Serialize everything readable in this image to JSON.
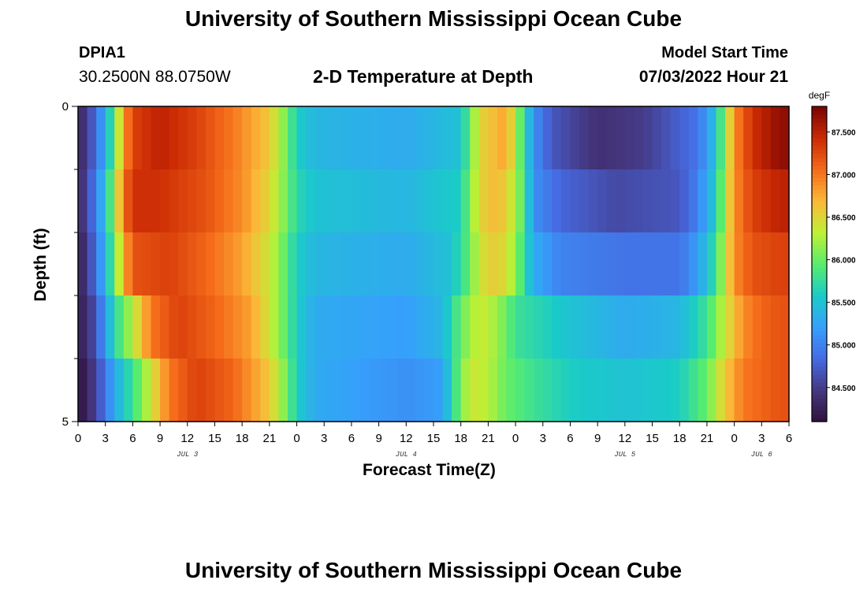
{
  "header": {
    "title": "University of Southern Mississippi Ocean Cube",
    "station": "DPIA1",
    "coords": "30.2500N  88.0750W",
    "plot_title": "2-D Temperature at Depth",
    "start_label": "Model Start Time",
    "start_value": "07/03/2022 Hour 21"
  },
  "footer": {
    "title": "University of Southern Mississippi Ocean Cube"
  },
  "chart_data": {
    "type": "heatmap",
    "title": "2-D Temperature at Depth",
    "xlabel": "Forecast Time(Z)",
    "ylabel": "Depth (ft)",
    "x_start_hour": 0,
    "x_end_hour": 78,
    "x_tick_labels": [
      "0",
      "3",
      "6",
      "9",
      "12",
      "15",
      "18",
      "21",
      "0",
      "3",
      "6",
      "9",
      "12",
      "15",
      "18",
      "21",
      "0",
      "3",
      "6",
      "9",
      "12",
      "15",
      "18",
      "21",
      "0",
      "3",
      "6"
    ],
    "day_labels": [
      {
        "label": "JUL 3",
        "hour": 12
      },
      {
        "label": "JUL 4",
        "hour": 36
      },
      {
        "label": "JUL 5",
        "hour": 60
      },
      {
        "label": "JUL 6",
        "hour": 75
      }
    ],
    "y_range": [
      0,
      5
    ],
    "y_tick_labels": [
      "0",
      "5"
    ],
    "depth_layers": [
      0,
      1,
      2,
      3,
      4
    ],
    "colorbar": {
      "unit": "degF",
      "min": 84.1,
      "max": 87.8,
      "ticks": [
        "84.500",
        "85.000",
        "85.500",
        "86.000",
        "86.500",
        "87.000",
        "87.500"
      ],
      "tick_values": [
        84.5,
        85.0,
        85.5,
        86.0,
        86.5,
        87.0,
        87.5
      ]
    },
    "layer_profiles": [
      {
        "depth_ft": 0,
        "points": [
          [
            0,
            84.3
          ],
          [
            1,
            84.5
          ],
          [
            2,
            84.9
          ],
          [
            3,
            85.3
          ],
          [
            4,
            86.0
          ],
          [
            5,
            86.8
          ],
          [
            6,
            87.3
          ],
          [
            9,
            87.5
          ],
          [
            13,
            87.3
          ],
          [
            17,
            87.0
          ],
          [
            21,
            86.6
          ],
          [
            23,
            86.0
          ],
          [
            24,
            85.6
          ],
          [
            26,
            85.4
          ],
          [
            36,
            85.3
          ],
          [
            42,
            85.5
          ],
          [
            43,
            86.0
          ],
          [
            44,
            86.5
          ],
          [
            47,
            86.8
          ],
          [
            48,
            86.3
          ],
          [
            49,
            85.7
          ],
          [
            50,
            85.1
          ],
          [
            52,
            84.7
          ],
          [
            57,
            84.4
          ],
          [
            62,
            84.5
          ],
          [
            68,
            84.9
          ],
          [
            70,
            85.5
          ],
          [
            71,
            86.2
          ],
          [
            72,
            86.9
          ],
          [
            74,
            87.4
          ],
          [
            77,
            87.7
          ]
        ]
      },
      {
        "depth_ft": 1,
        "points": [
          [
            0,
            84.3
          ],
          [
            1,
            84.6
          ],
          [
            2,
            85.0
          ],
          [
            3,
            85.5
          ],
          [
            4,
            86.2
          ],
          [
            5,
            87.0
          ],
          [
            6,
            87.4
          ],
          [
            9,
            87.4
          ],
          [
            14,
            87.2
          ],
          [
            18,
            86.9
          ],
          [
            21,
            86.5
          ],
          [
            23,
            86.0
          ],
          [
            24,
            85.7
          ],
          [
            26,
            85.5
          ],
          [
            36,
            85.4
          ],
          [
            42,
            85.6
          ],
          [
            43,
            86.1
          ],
          [
            44,
            86.5
          ],
          [
            46,
            86.7
          ],
          [
            48,
            86.3
          ],
          [
            49,
            85.8
          ],
          [
            50,
            85.1
          ],
          [
            53,
            84.8
          ],
          [
            59,
            84.6
          ],
          [
            66,
            84.7
          ],
          [
            68,
            85.0
          ],
          [
            70,
            85.6
          ],
          [
            71,
            86.3
          ],
          [
            72,
            86.9
          ],
          [
            74,
            87.3
          ],
          [
            77,
            87.5
          ]
        ]
      },
      {
        "depth_ft": 2,
        "points": [
          [
            0,
            84.2
          ],
          [
            1,
            84.5
          ],
          [
            2,
            84.9
          ],
          [
            3,
            85.4
          ],
          [
            4,
            86.0
          ],
          [
            5,
            86.7
          ],
          [
            6,
            87.2
          ],
          [
            10,
            87.3
          ],
          [
            14,
            87.1
          ],
          [
            18,
            86.8
          ],
          [
            21,
            86.4
          ],
          [
            23,
            85.9
          ],
          [
            24,
            85.6
          ],
          [
            26,
            85.4
          ],
          [
            36,
            85.3
          ],
          [
            41,
            85.5
          ],
          [
            43,
            86.0
          ],
          [
            44,
            86.4
          ],
          [
            46,
            86.6
          ],
          [
            48,
            86.2
          ],
          [
            49,
            85.7
          ],
          [
            50,
            85.3
          ],
          [
            53,
            85.0
          ],
          [
            60,
            84.9
          ],
          [
            66,
            84.9
          ],
          [
            68,
            85.2
          ],
          [
            70,
            85.8
          ],
          [
            71,
            86.4
          ],
          [
            72,
            86.9
          ],
          [
            74,
            87.2
          ],
          [
            77,
            87.3
          ]
        ]
      },
      {
        "depth_ft": 3,
        "points": [
          [
            0,
            84.2
          ],
          [
            1,
            84.4
          ],
          [
            2,
            84.7
          ],
          [
            3,
            85.2
          ],
          [
            4,
            85.7
          ],
          [
            6,
            86.3
          ],
          [
            8,
            87.0
          ],
          [
            11,
            87.3
          ],
          [
            15,
            87.1
          ],
          [
            19,
            86.8
          ],
          [
            21,
            86.4
          ],
          [
            23,
            85.9
          ],
          [
            24,
            85.6
          ],
          [
            26,
            85.3
          ],
          [
            36,
            85.2
          ],
          [
            40,
            85.4
          ],
          [
            42,
            86.0
          ],
          [
            44,
            86.4
          ],
          [
            46,
            86.2
          ],
          [
            48,
            85.8
          ],
          [
            50,
            85.7
          ],
          [
            54,
            85.5
          ],
          [
            60,
            85.3
          ],
          [
            66,
            85.4
          ],
          [
            69,
            85.8
          ],
          [
            71,
            86.4
          ],
          [
            73,
            86.9
          ],
          [
            75,
            87.1
          ],
          [
            77,
            87.2
          ]
        ]
      },
      {
        "depth_ft": 4,
        "points": [
          [
            0,
            84.1
          ],
          [
            1,
            84.3
          ],
          [
            2,
            84.6
          ],
          [
            3,
            84.9
          ],
          [
            4,
            85.3
          ],
          [
            6,
            85.8
          ],
          [
            8,
            86.4
          ],
          [
            10,
            87.0
          ],
          [
            13,
            87.3
          ],
          [
            17,
            87.1
          ],
          [
            21,
            86.6
          ],
          [
            23,
            86.0
          ],
          [
            24,
            85.6
          ],
          [
            26,
            85.3
          ],
          [
            36,
            85.1
          ],
          [
            40,
            85.2
          ],
          [
            41,
            85.7
          ],
          [
            43,
            86.4
          ],
          [
            45,
            86.3
          ],
          [
            47,
            86.0
          ],
          [
            50,
            85.8
          ],
          [
            54,
            85.6
          ],
          [
            60,
            85.5
          ],
          [
            66,
            85.6
          ],
          [
            69,
            86.0
          ],
          [
            71,
            86.6
          ],
          [
            73,
            87.0
          ],
          [
            77,
            87.2
          ]
        ]
      }
    ]
  }
}
